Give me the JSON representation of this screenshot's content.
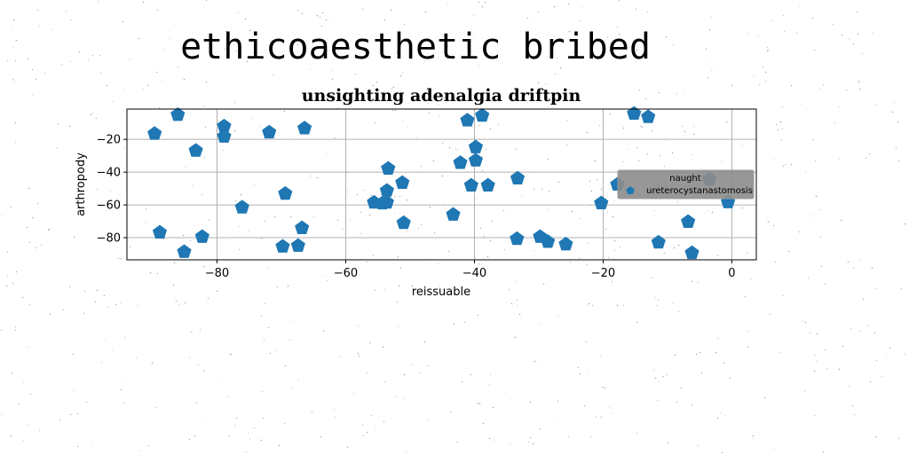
{
  "suptitle": "ethicoaesthetic bribed",
  "chart_data": {
    "type": "scatter",
    "title": "unsighting adenalgia driftpin",
    "xlabel": "reissuable",
    "ylabel": "arthropody",
    "xlim": [
      -94,
      3.8
    ],
    "ylim": [
      -93.5,
      -1.5
    ],
    "xticks": [
      -80,
      -60,
      -40,
      -20,
      0
    ],
    "yticks": [
      -80,
      -60,
      -40,
      -20
    ],
    "xtick_labels": [
      "−80",
      "−60",
      "−40",
      "−20",
      "0"
    ],
    "ytick_labels": [
      "−80",
      "−60",
      "−40",
      "−20"
    ],
    "grid": true,
    "legend": {
      "title": "naught",
      "placement": "center-right"
    },
    "colors": {
      "series": "#1f77b4",
      "legend_bg": "#8c8c8c",
      "grid": "#b0b0b0"
    },
    "series": [
      {
        "name": "ureterocystanastomosis",
        "marker": "pentagon",
        "points": [
          [
            -89.7,
            -16.5
          ],
          [
            -88.9,
            -76.8
          ],
          [
            -86.1,
            -5.0
          ],
          [
            -85.1,
            -88.6
          ],
          [
            -83.3,
            -26.9
          ],
          [
            -82.3,
            -79.4
          ],
          [
            -78.9,
            -12.0
          ],
          [
            -78.9,
            -18.3
          ],
          [
            -76.1,
            -61.5
          ],
          [
            -71.9,
            -15.7
          ],
          [
            -69.8,
            -85.4
          ],
          [
            -69.4,
            -53.1
          ],
          [
            -67.4,
            -84.9
          ],
          [
            -66.8,
            -74.1
          ],
          [
            -66.4,
            -13.2
          ],
          [
            -55.6,
            -58.5
          ],
          [
            -54.3,
            -59.0
          ],
          [
            -53.6,
            -58.5
          ],
          [
            -53.6,
            -51.3
          ],
          [
            -53.4,
            -37.8
          ],
          [
            -51.2,
            -46.5
          ],
          [
            -51.0,
            -71.0
          ],
          [
            -43.3,
            -65.9
          ],
          [
            -42.2,
            -34.3
          ],
          [
            -41.1,
            -8.4
          ],
          [
            -40.5,
            -48.1
          ],
          [
            -39.8,
            -32.8
          ],
          [
            -39.8,
            -24.8
          ],
          [
            -38.8,
            -5.5
          ],
          [
            -37.9,
            -48.1
          ],
          [
            -33.4,
            -80.7
          ],
          [
            -33.3,
            -43.8
          ],
          [
            -29.8,
            -79.4
          ],
          [
            -28.6,
            -82.5
          ],
          [
            -25.8,
            -84.0
          ],
          [
            -20.3,
            -58.9
          ],
          [
            -17.8,
            -47.6
          ],
          [
            -15.2,
            -4.3
          ],
          [
            -13.0,
            -6.3
          ],
          [
            -11.4,
            -82.9
          ],
          [
            -6.8,
            -70.3
          ],
          [
            -6.2,
            -89.3
          ],
          [
            -3.5,
            -44.4
          ],
          [
            -0.6,
            -58.3
          ]
        ]
      }
    ]
  }
}
